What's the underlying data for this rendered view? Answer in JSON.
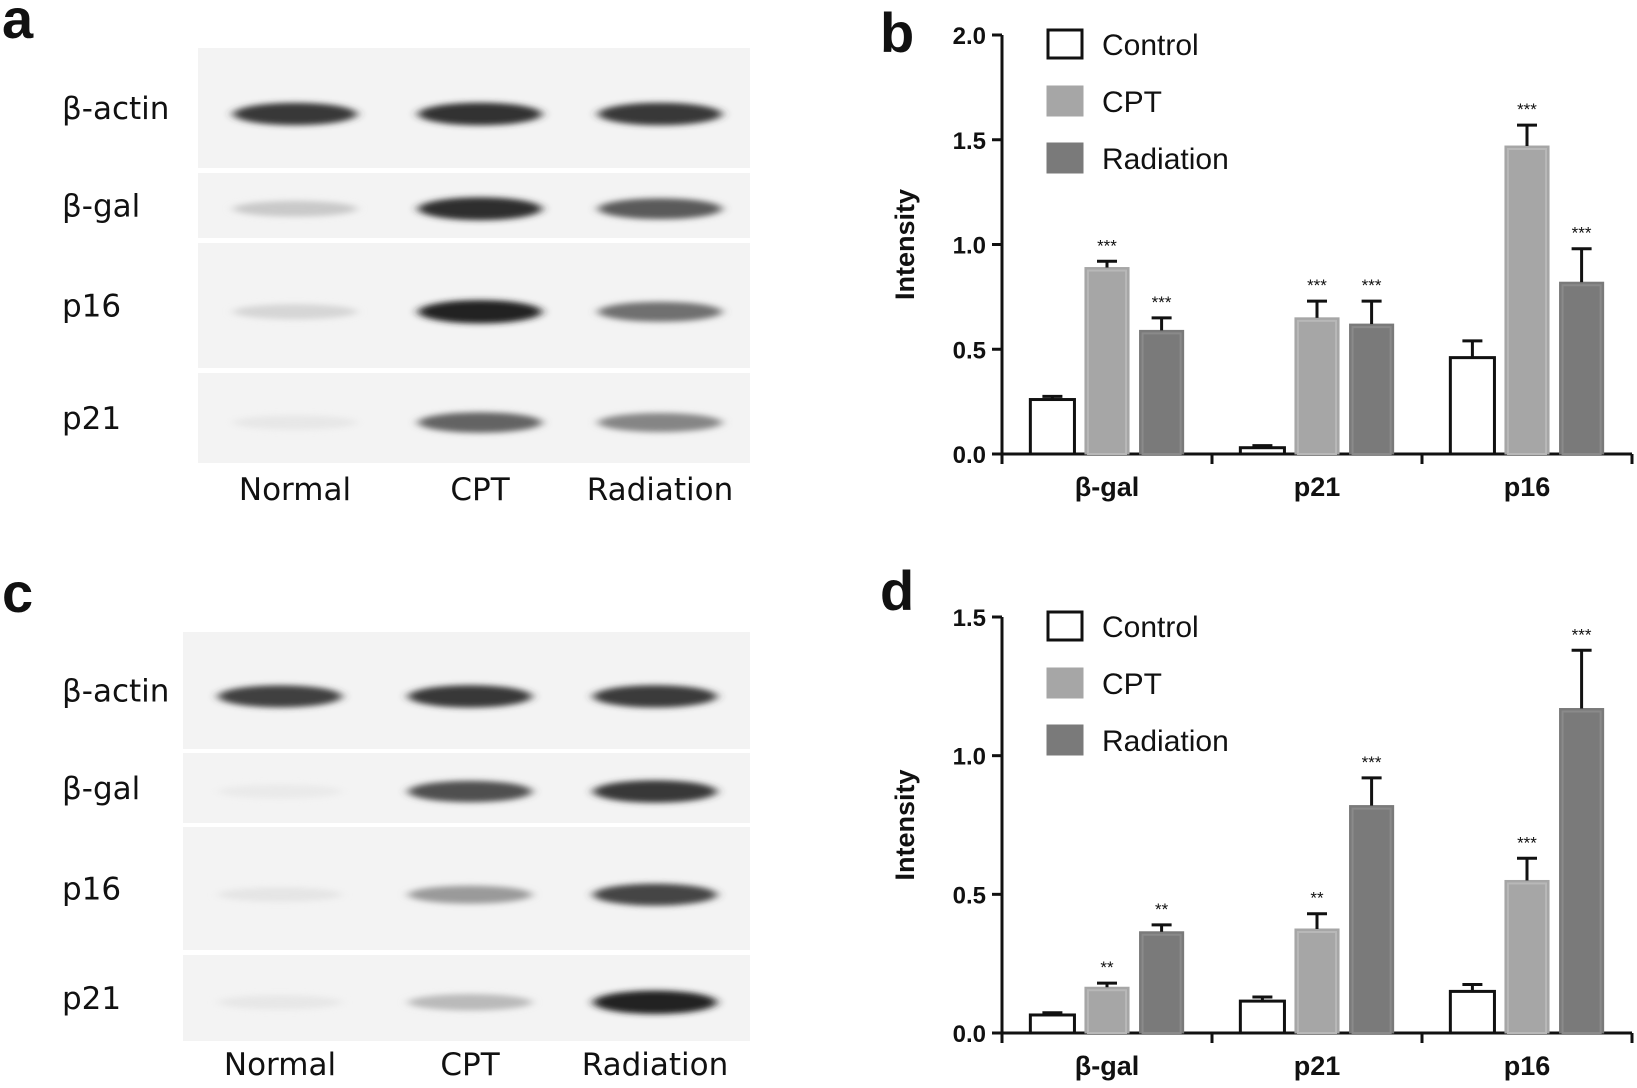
{
  "panels": {
    "a": {
      "letter": "a",
      "rows": [
        "β-actin",
        "β-gal",
        "p16",
        "p21"
      ],
      "lanes": [
        "Normal",
        "CPT",
        "Radiation"
      ],
      "band_darkness": [
        [
          0.85,
          0.88,
          0.86
        ],
        [
          0.18,
          0.9,
          0.7
        ],
        [
          0.12,
          0.95,
          0.6
        ],
        [
          0.04,
          0.65,
          0.5
        ]
      ]
    },
    "c": {
      "letter": "c",
      "rows": [
        "β-actin",
        "β-gal",
        "p16",
        "p21"
      ],
      "lanes": [
        "Normal",
        "CPT",
        "Radiation"
      ],
      "band_darkness": [
        [
          0.82,
          0.85,
          0.84
        ],
        [
          0.03,
          0.75,
          0.85
        ],
        [
          0.05,
          0.4,
          0.8
        ],
        [
          0.04,
          0.25,
          0.95
        ]
      ]
    }
  },
  "chart_data": [
    {
      "panel": "b",
      "type": "bar",
      "categories": [
        "β-gal",
        "p21",
        "p16"
      ],
      "series": [
        {
          "name": "Control",
          "values": [
            0.26,
            0.03,
            0.46
          ],
          "errors": [
            0.015,
            0.01,
            0.08
          ],
          "color": "#ffffff",
          "sig": [
            "",
            "",
            ""
          ]
        },
        {
          "name": "CPT",
          "values": [
            0.89,
            0.65,
            1.47
          ],
          "errors": [
            0.03,
            0.08,
            0.1
          ],
          "color": "#a6a6a6",
          "sig": [
            "***",
            "***",
            "***"
          ]
        },
        {
          "name": "Radiation",
          "values": [
            0.59,
            0.62,
            0.82
          ],
          "errors": [
            0.06,
            0.11,
            0.16
          ],
          "color": "#7a7a7a",
          "sig": [
            "***",
            "***",
            "***"
          ]
        }
      ],
      "ylabel": "Intensity",
      "ylim": [
        0,
        2.0
      ],
      "yticks": [
        "0.0",
        "0.5",
        "1.0",
        "1.5",
        "2.0"
      ],
      "legend_position": "top-left",
      "grid": false
    },
    {
      "panel": "d",
      "type": "bar",
      "categories": [
        "β-gal",
        "p21",
        "p16"
      ],
      "series": [
        {
          "name": "Control",
          "values": [
            0.065,
            0.115,
            0.15
          ],
          "errors": [
            0.008,
            0.015,
            0.025
          ],
          "color": "#ffffff",
          "sig": [
            "",
            "",
            ""
          ]
        },
        {
          "name": "CPT",
          "values": [
            0.165,
            0.375,
            0.55
          ],
          "errors": [
            0.015,
            0.055,
            0.08
          ],
          "color": "#a6a6a6",
          "sig": [
            "**",
            "**",
            "***"
          ]
        },
        {
          "name": "Radiation",
          "values": [
            0.365,
            0.82,
            1.17
          ],
          "errors": [
            0.025,
            0.1,
            0.21
          ],
          "color": "#7a7a7a",
          "sig": [
            "**",
            "***",
            "***"
          ]
        }
      ],
      "ylabel": "Intensity",
      "ylim": [
        0,
        1.5
      ],
      "yticks": [
        "0.0",
        "0.5",
        "1.0",
        "1.5"
      ],
      "legend_position": "top-left",
      "grid": false
    }
  ]
}
